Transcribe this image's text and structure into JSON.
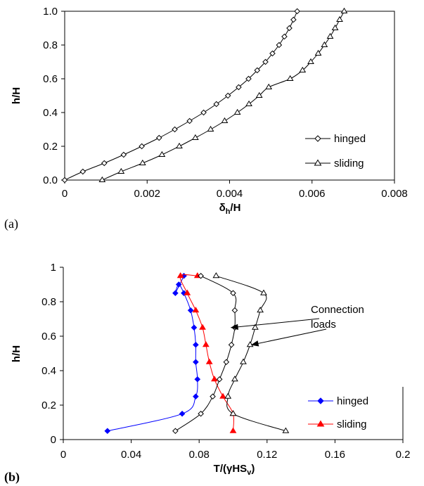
{
  "chart_data": [
    {
      "type": "line",
      "panel_label": "(a)",
      "xlabel": "δh/H",
      "xlabel_main": "δ",
      "xlabel_sub": "h",
      "xlabel_tail": "/H",
      "ylabel": "h/H",
      "xlim": [
        0,
        0.008
      ],
      "ylim": [
        0,
        1.0
      ],
      "xticks": [
        "0",
        "0.002",
        "0.004",
        "0.006",
        "0.008"
      ],
      "xtick_values": [
        0,
        0.002,
        0.004,
        0.006,
        0.008
      ],
      "yticks": [
        "0.0",
        "0.2",
        "0.4",
        "0.6",
        "0.8",
        "1.0"
      ],
      "ytick_values": [
        0,
        0.2,
        0.4,
        0.6,
        0.8,
        1.0
      ],
      "grid": false,
      "legend_position": "bottom-right",
      "series": [
        {
          "name": "hinged",
          "marker": "diamond",
          "color": "#000000",
          "x": [
            0,
            0.00044,
            0.00096,
            0.00143,
            0.00187,
            0.00229,
            0.00267,
            0.00303,
            0.00337,
            0.00368,
            0.00396,
            0.00422,
            0.00446,
            0.00467,
            0.00487,
            0.00504,
            0.0052,
            0.00533,
            0.00545,
            0.00555,
            0.00564
          ],
          "y": [
            0,
            0.05,
            0.1,
            0.15,
            0.2,
            0.25,
            0.3,
            0.35,
            0.4,
            0.45,
            0.5,
            0.55,
            0.6,
            0.65,
            0.7,
            0.75,
            0.8,
            0.85,
            0.9,
            0.95,
            1.0
          ]
        },
        {
          "name": "sliding",
          "marker": "triangle",
          "color": "#000000",
          "x": [
            0.00091,
            0.00137,
            0.00189,
            0.00236,
            0.00278,
            0.00317,
            0.00354,
            0.00388,
            0.00419,
            0.00447,
            0.00472,
            0.00495,
            0.00547,
            0.00577,
            0.00597,
            0.00615,
            0.0063,
            0.00644,
            0.00656,
            0.00667,
            0.00678
          ],
          "y": [
            0,
            0.05,
            0.1,
            0.15,
            0.2,
            0.25,
            0.3,
            0.35,
            0.4,
            0.45,
            0.5,
            0.55,
            0.6,
            0.65,
            0.7,
            0.75,
            0.8,
            0.85,
            0.9,
            0.95,
            1.0
          ]
        }
      ]
    },
    {
      "type": "line",
      "panel_label": "(b)",
      "xlabel": "T/(γHSv)",
      "xlabel_main": "T/(γHS",
      "xlabel_sub": "v",
      "xlabel_tail": ")",
      "ylabel": "h/H",
      "xlim": [
        0,
        0.2
      ],
      "ylim": [
        0,
        1
      ],
      "xticks": [
        "0",
        "0.04",
        "0.08",
        "0.12",
        "0.16",
        "0.2"
      ],
      "xtick_values": [
        0,
        0.04,
        0.08,
        0.12,
        0.16,
        0.2
      ],
      "yticks": [
        "0",
        "0.2",
        "0.4",
        "0.6",
        "0.8",
        "1"
      ],
      "ytick_values": [
        0,
        0.2,
        0.4,
        0.6,
        0.8,
        1
      ],
      "grid": false,
      "legend_position": "bottom-right",
      "annotation": {
        "line1": "Connection",
        "line2": "loads",
        "targets": [
          [
            0.099,
            0.65
          ],
          [
            0.111,
            0.55
          ]
        ]
      },
      "series": [
        {
          "name": "hinged",
          "marker": "filled-diamond",
          "color": "#0000ff",
          "x": [
            0.026,
            0.07,
            0.078,
            0.079,
            0.078,
            0.078,
            0.077,
            0.075,
            0.071,
            0.068,
            0.066,
            0.071
          ],
          "y": [
            0.05,
            0.15,
            0.25,
            0.35,
            0.45,
            0.55,
            0.65,
            0.75,
            0.85,
            0.9,
            0.85,
            0.95
          ]
        },
        {
          "name": "sliding",
          "marker": "filled-triangle",
          "color": "#ff0000",
          "x": [
            0.1,
            0.1,
            0.094,
            0.089,
            0.086,
            0.084,
            0.082,
            0.078,
            0.073,
            0.069,
            0.079
          ],
          "y": [
            0.05,
            0.15,
            0.25,
            0.35,
            0.45,
            0.55,
            0.65,
            0.75,
            0.85,
            0.95,
            0.95
          ]
        },
        {
          "name": "",
          "marker": "open-diamond",
          "color": "#000000",
          "x": [
            0.066,
            0.081,
            0.088,
            0.092,
            0.096,
            0.099,
            0.101,
            0.101,
            0.1,
            0.081
          ],
          "y": [
            0.05,
            0.15,
            0.25,
            0.35,
            0.45,
            0.55,
            0.65,
            0.75,
            0.85,
            0.95
          ]
        },
        {
          "name": "",
          "marker": "open-triangle",
          "color": "#000000",
          "x": [
            0.131,
            0.1,
            0.097,
            0.101,
            0.106,
            0.11,
            0.113,
            0.116,
            0.118,
            0.09
          ],
          "y": [
            0.05,
            0.15,
            0.25,
            0.35,
            0.45,
            0.55,
            0.65,
            0.75,
            0.85,
            0.95
          ]
        }
      ]
    }
  ]
}
